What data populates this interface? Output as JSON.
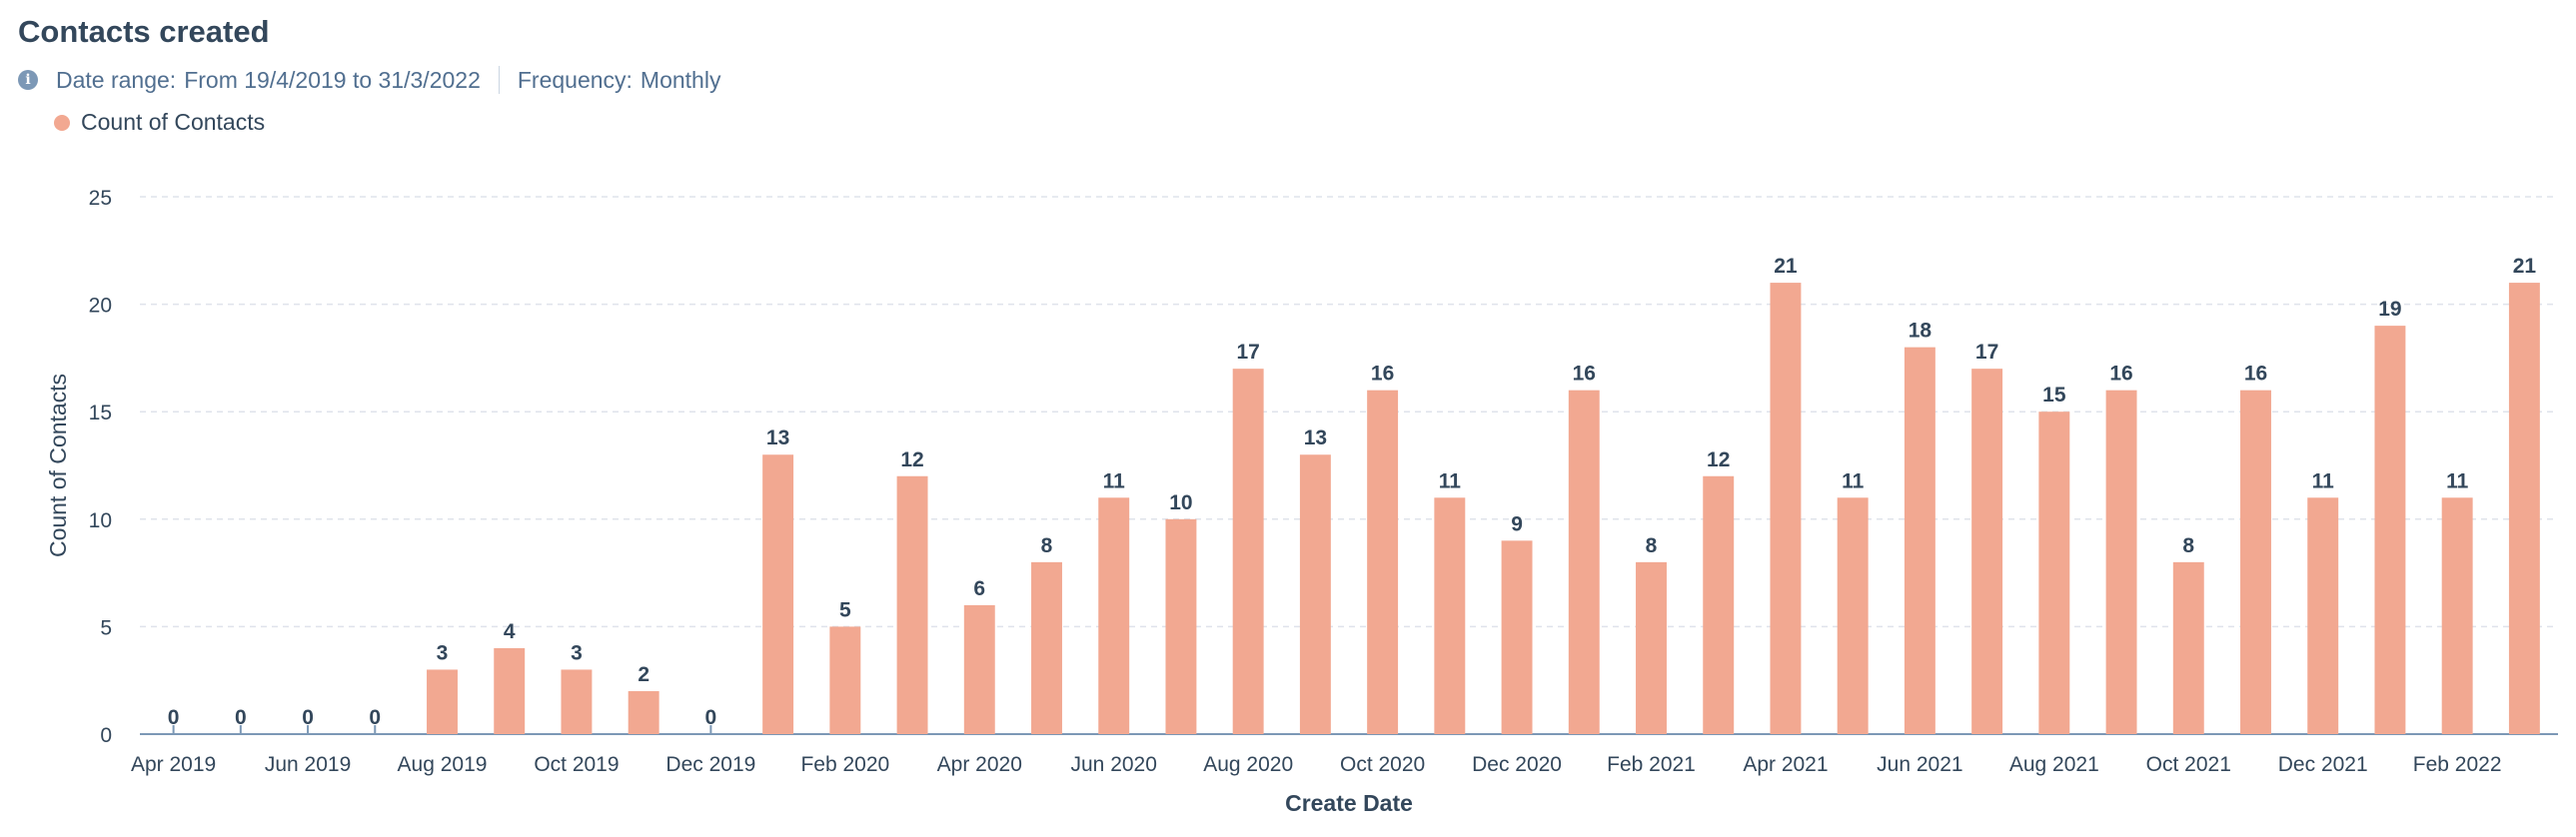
{
  "header": {
    "title": "Contacts created",
    "date_range_label": "Date range:",
    "date_range_value": "From 19/4/2019 to 31/3/2022",
    "frequency_label": "Frequency:",
    "frequency_value": "Monthly",
    "info_icon": "info-icon"
  },
  "colors": {
    "bar": "#f2a891",
    "grid": "#dfe3eb",
    "axis": "#7c98b6"
  },
  "chart_data": {
    "type": "bar",
    "title": "Contacts created",
    "xlabel": "Create Date",
    "ylabel": "Count of Contacts",
    "ylim": [
      0,
      25
    ],
    "yticks": [
      0,
      5,
      10,
      15,
      20,
      25
    ],
    "grid": true,
    "legend_position": "top-left",
    "categories": [
      "Apr 2019",
      "May 2019",
      "Jun 2019",
      "Jul 2019",
      "Aug 2019",
      "Sep 2019",
      "Oct 2019",
      "Nov 2019",
      "Dec 2019",
      "Jan 2020",
      "Feb 2020",
      "Mar 2020",
      "Apr 2020",
      "May 2020",
      "Jun 2020",
      "Jul 2020",
      "Aug 2020",
      "Sep 2020",
      "Oct 2020",
      "Nov 2020",
      "Dec 2020",
      "Jan 2021",
      "Feb 2021",
      "Mar 2021",
      "Apr 2021",
      "May 2021",
      "Jun 2021",
      "Jul 2021",
      "Aug 2021",
      "Sep 2021",
      "Oct 2021",
      "Nov 2021",
      "Dec 2021",
      "Jan 2022",
      "Feb 2022",
      "Mar 2022"
    ],
    "tick_labels": [
      "Apr 2019",
      "",
      "Jun 2019",
      "",
      "Aug 2019",
      "",
      "Oct 2019",
      "",
      "Dec 2019",
      "",
      "Feb 2020",
      "",
      "Apr 2020",
      "",
      "Jun 2020",
      "",
      "Aug 2020",
      "",
      "Oct 2020",
      "",
      "Dec 2020",
      "",
      "Feb 2021",
      "",
      "Apr 2021",
      "",
      "Jun 2021",
      "",
      "Aug 2021",
      "",
      "Oct 2021",
      "",
      "Dec 2021",
      "",
      "Feb 2022",
      ""
    ],
    "series": [
      {
        "name": "Count of Contacts",
        "values": [
          0,
          0,
          0,
          0,
          3,
          4,
          3,
          2,
          0,
          13,
          5,
          12,
          6,
          8,
          11,
          10,
          17,
          13,
          16,
          11,
          9,
          16,
          8,
          12,
          21,
          11,
          18,
          17,
          15,
          16,
          8,
          16,
          11,
          19,
          11,
          21
        ]
      }
    ]
  }
}
